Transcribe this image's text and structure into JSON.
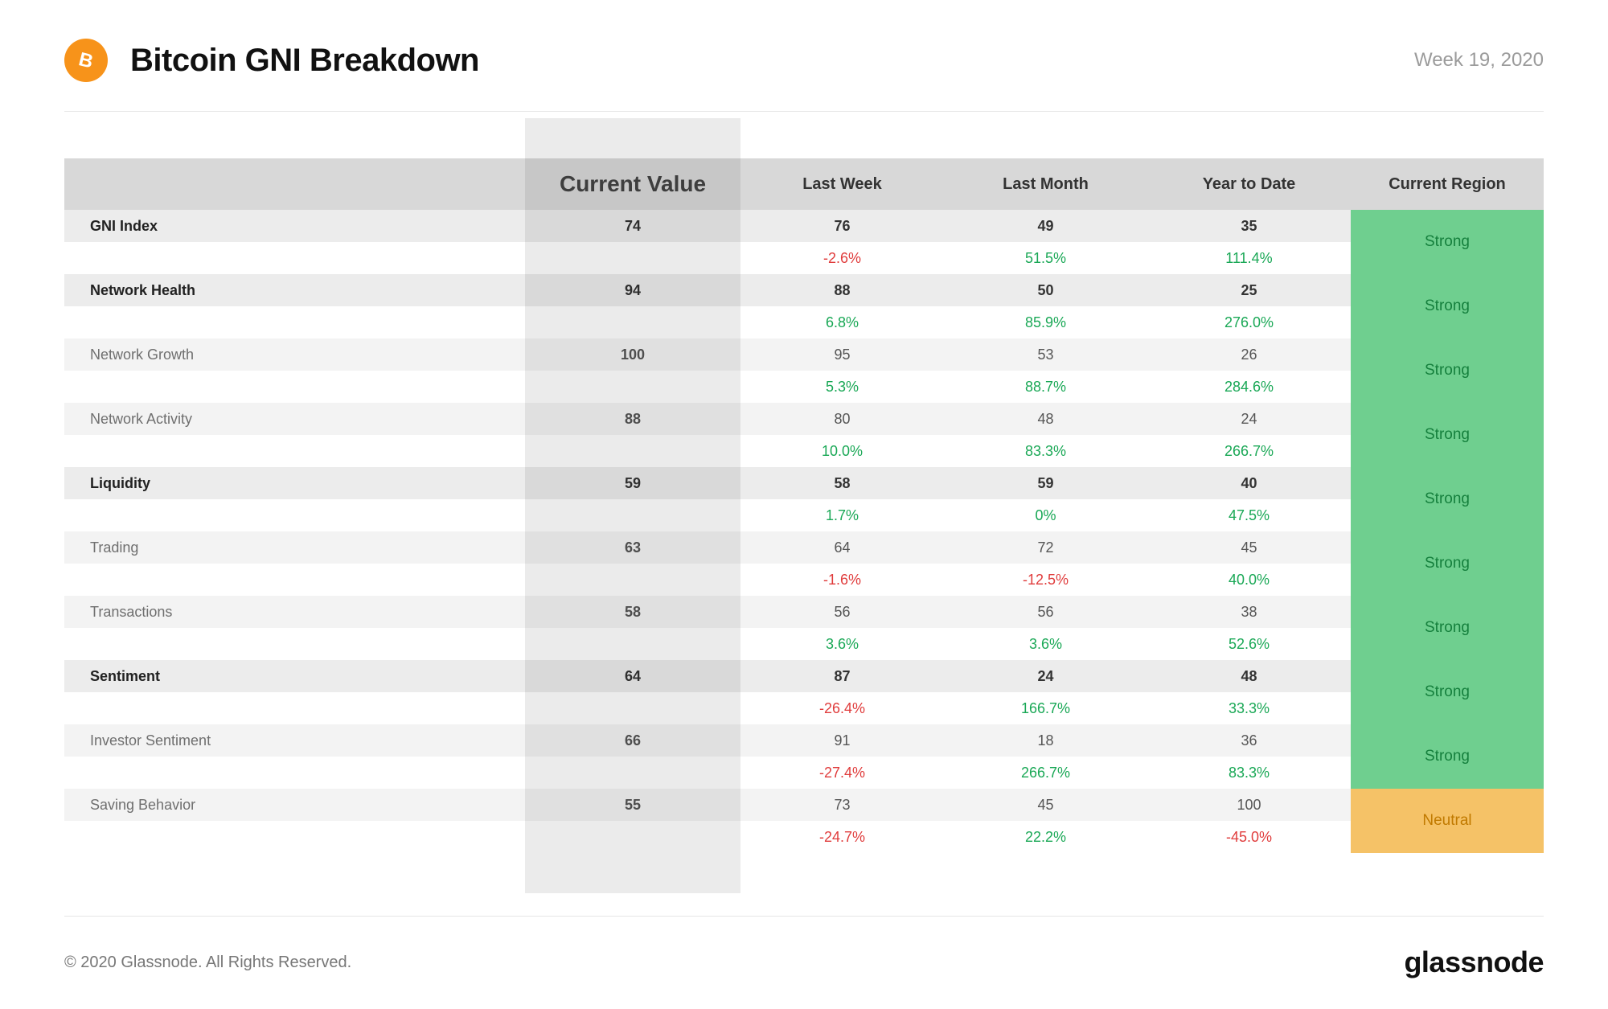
{
  "header": {
    "title": "Bitcoin GNI Breakdown",
    "week_label": "Week 19, 2020",
    "icon_name": "bitcoin-icon",
    "icon_bg": "#f7931a",
    "icon_fg": "#ffffff"
  },
  "table": {
    "columns": {
      "current": "Current Value",
      "last_week": "Last Week",
      "last_month": "Last Month",
      "ytd": "Year to Date",
      "region": "Current Region"
    },
    "rows": [
      {
        "label": "GNI Index",
        "bold": true,
        "current": "74",
        "last_week": {
          "v": "76",
          "pct": "-2.6%",
          "dir": "neg"
        },
        "last_month": {
          "v": "49",
          "pct": "51.5%",
          "dir": "pos"
        },
        "ytd": {
          "v": "35",
          "pct": "111.4%",
          "dir": "pos"
        },
        "region": {
          "label": "Strong",
          "class": "strong"
        }
      },
      {
        "label": "Network Health",
        "bold": true,
        "current": "94",
        "last_week": {
          "v": "88",
          "pct": "6.8%",
          "dir": "pos"
        },
        "last_month": {
          "v": "50",
          "pct": "85.9%",
          "dir": "pos"
        },
        "ytd": {
          "v": "25",
          "pct": "276.0%",
          "dir": "pos"
        },
        "region": {
          "label": "Strong",
          "class": "strong"
        }
      },
      {
        "label": "Network Growth",
        "bold": false,
        "current": "100",
        "last_week": {
          "v": "95",
          "pct": "5.3%",
          "dir": "pos"
        },
        "last_month": {
          "v": "53",
          "pct": "88.7%",
          "dir": "pos"
        },
        "ytd": {
          "v": "26",
          "pct": "284.6%",
          "dir": "pos"
        },
        "region": {
          "label": "Strong",
          "class": "strong"
        }
      },
      {
        "label": "Network Activity",
        "bold": false,
        "current": "88",
        "last_week": {
          "v": "80",
          "pct": "10.0%",
          "dir": "pos"
        },
        "last_month": {
          "v": "48",
          "pct": "83.3%",
          "dir": "pos"
        },
        "ytd": {
          "v": "24",
          "pct": "266.7%",
          "dir": "pos"
        },
        "region": {
          "label": "Strong",
          "class": "strong"
        }
      },
      {
        "label": "Liquidity",
        "bold": true,
        "current": "59",
        "last_week": {
          "v": "58",
          "pct": "1.7%",
          "dir": "pos"
        },
        "last_month": {
          "v": "59",
          "pct": "0%",
          "dir": "pos"
        },
        "ytd": {
          "v": "40",
          "pct": "47.5%",
          "dir": "pos"
        },
        "region": {
          "label": "Strong",
          "class": "strong"
        }
      },
      {
        "label": "Trading",
        "bold": false,
        "current": "63",
        "last_week": {
          "v": "64",
          "pct": "-1.6%",
          "dir": "neg"
        },
        "last_month": {
          "v": "72",
          "pct": "-12.5%",
          "dir": "neg"
        },
        "ytd": {
          "v": "45",
          "pct": "40.0%",
          "dir": "pos"
        },
        "region": {
          "label": "Strong",
          "class": "strong"
        }
      },
      {
        "label": "Transactions",
        "bold": false,
        "current": "58",
        "last_week": {
          "v": "56",
          "pct": "3.6%",
          "dir": "pos"
        },
        "last_month": {
          "v": "56",
          "pct": "3.6%",
          "dir": "pos"
        },
        "ytd": {
          "v": "38",
          "pct": "52.6%",
          "dir": "pos"
        },
        "region": {
          "label": "Strong",
          "class": "strong"
        }
      },
      {
        "label": "Sentiment",
        "bold": true,
        "current": "64",
        "last_week": {
          "v": "87",
          "pct": "-26.4%",
          "dir": "neg"
        },
        "last_month": {
          "v": "24",
          "pct": "166.7%",
          "dir": "pos"
        },
        "ytd": {
          "v": "48",
          "pct": "33.3%",
          "dir": "pos"
        },
        "region": {
          "label": "Strong",
          "class": "strong"
        }
      },
      {
        "label": "Investor Sentiment",
        "bold": false,
        "current": "66",
        "last_week": {
          "v": "91",
          "pct": "-27.4%",
          "dir": "neg"
        },
        "last_month": {
          "v": "18",
          "pct": "266.7%",
          "dir": "pos"
        },
        "ytd": {
          "v": "36",
          "pct": "83.3%",
          "dir": "pos"
        },
        "region": {
          "label": "Strong",
          "class": "strong"
        }
      },
      {
        "label": "Saving Behavior",
        "bold": false,
        "current": "55",
        "last_week": {
          "v": "73",
          "pct": "-24.7%",
          "dir": "neg"
        },
        "last_month": {
          "v": "45",
          "pct": "22.2%",
          "dir": "pos"
        },
        "ytd": {
          "v": "100",
          "pct": "-45.0%",
          "dir": "neg"
        },
        "region": {
          "label": "Neutral",
          "class": "neutral"
        }
      }
    ],
    "region_colors": {
      "strong": "#6fcf8f",
      "neutral": "#f5c267"
    },
    "pct_colors": {
      "pos": "#1aa856",
      "neg": "#e03c3c"
    },
    "header_bg": "#d8d8d8",
    "row_bg_bold": "#ececec",
    "row_bg_sub": "#f3f3f3",
    "highlight_overlay": "rgba(0,0,0,0.08)"
  },
  "footer": {
    "copyright": "© 2020 Glassnode. All Rights Reserved.",
    "brand": "glassnode"
  }
}
